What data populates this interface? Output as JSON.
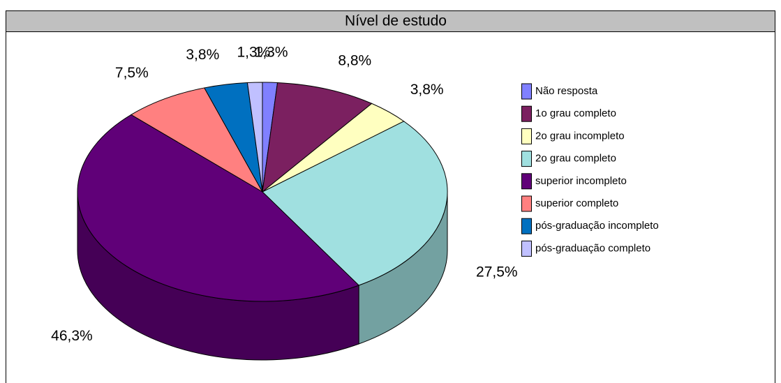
{
  "chart_data": {
    "type": "pie",
    "title": "Nível de estudo",
    "categories": [
      "Não resposta",
      "1o grau completo",
      "2o grau incompleto",
      "2o grau completo",
      "superior incompleto",
      "superior completo",
      "pós-graduação incompleto",
      "pós-graduação completo"
    ],
    "values": [
      1.3,
      8.8,
      3.8,
      27.5,
      46.3,
      7.5,
      3.8,
      1.3
    ],
    "value_labels": [
      "1,3%",
      "8,8%",
      "3,8%",
      "27,5%",
      "46,3%",
      "7,5%",
      "3,8%",
      "1,3%"
    ],
    "colors": [
      "#8080ff",
      "#7b2060",
      "#ffffc0",
      "#a0e0e0",
      "#600078",
      "#ff8080",
      "#0070c0",
      "#c0c0ff"
    ],
    "legend": "right"
  }
}
